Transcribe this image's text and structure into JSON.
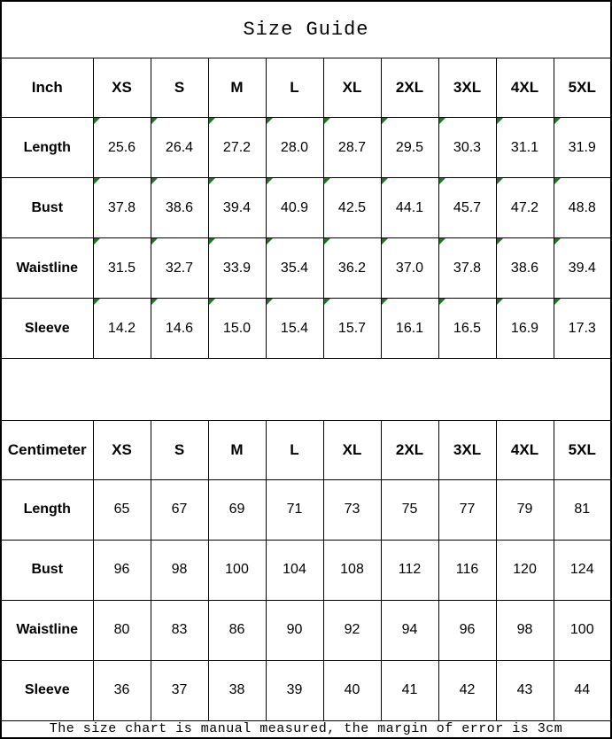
{
  "page": {
    "title": "Size Guide",
    "footer_note": "The size chart is manual measured, the margin of error is 3cm"
  },
  "sizes": [
    "XS",
    "S",
    "M",
    "L",
    "XL",
    "2XL",
    "3XL",
    "4XL",
    "5XL"
  ],
  "tables": [
    {
      "id": "inch",
      "unit_label": "Inch",
      "has_corner_markers": true,
      "rows": [
        {
          "label": "Length",
          "values": [
            "25.6",
            "26.4",
            "27.2",
            "28.0",
            "28.7",
            "29.5",
            "30.3",
            "31.1",
            "31.9"
          ]
        },
        {
          "label": "Bust",
          "values": [
            "37.8",
            "38.6",
            "39.4",
            "40.9",
            "42.5",
            "44.1",
            "45.7",
            "47.2",
            "48.8"
          ]
        },
        {
          "label": "Waistline",
          "values": [
            "31.5",
            "32.7",
            "33.9",
            "35.4",
            "36.2",
            "37.0",
            "37.8",
            "38.6",
            "39.4"
          ]
        },
        {
          "label": "Sleeve",
          "values": [
            "14.2",
            "14.6",
            "15.0",
            "15.4",
            "15.7",
            "16.1",
            "16.5",
            "16.9",
            "17.3"
          ]
        }
      ]
    },
    {
      "id": "centimeter",
      "unit_label": "Centimeter",
      "has_corner_markers": false,
      "rows": [
        {
          "label": "Length",
          "values": [
            "65",
            "67",
            "69",
            "71",
            "73",
            "75",
            "77",
            "79",
            "81"
          ]
        },
        {
          "label": "Bust",
          "values": [
            "96",
            "98",
            "100",
            "104",
            "108",
            "112",
            "116",
            "120",
            "124"
          ]
        },
        {
          "label": "Waistline",
          "values": [
            "80",
            "83",
            "86",
            "90",
            "92",
            "94",
            "96",
            "98",
            "100"
          ]
        },
        {
          "label": "Sleeve",
          "values": [
            "36",
            "37",
            "38",
            "39",
            "40",
            "41",
            "42",
            "43",
            "44"
          ]
        }
      ]
    }
  ],
  "colors": {
    "marker_green": "#1b7a1f",
    "border": "#000000",
    "background": "#ffffff",
    "text": "#000000"
  }
}
